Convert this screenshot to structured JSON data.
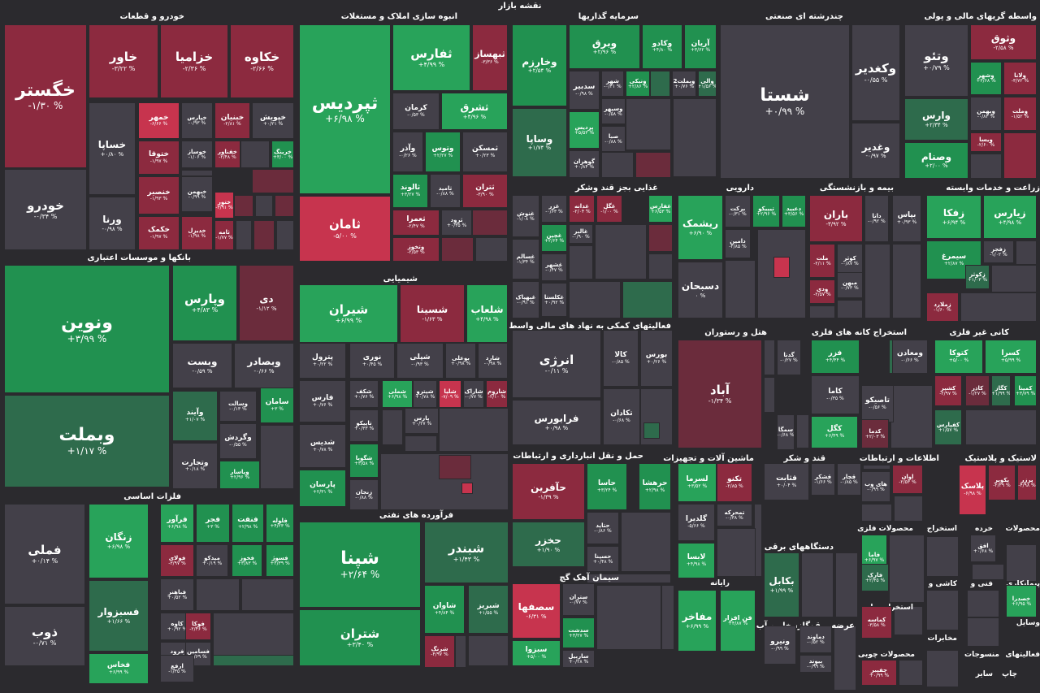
{
  "page_title": "نقشه بازار",
  "colors": {
    "background": "#2b2a2e",
    "strong_green": "#28a35a",
    "green": "#219150",
    "mid_green": "#2e6b4c",
    "neutral": "#434049",
    "mid_red": "#6b2c3c",
    "red": "#8c2a3f",
    "strong_red": "#c7344e"
  },
  "sectors": [
    {
      "name": "خودرو و قطعات"
    },
    {
      "name": "انبوه سازی املاک و مستغلات"
    },
    {
      "name": "سرمایه گذاریها"
    },
    {
      "name": "چندرشته ای صنعتی"
    },
    {
      "name": "واسطه گریهای مالی و پولی"
    },
    {
      "name": "غذایی بجز قند وشکر"
    },
    {
      "name": "دارویی"
    },
    {
      "name": "بیمه و بازنشستگی"
    },
    {
      "name": "زراعت و خدمات وابسته"
    },
    {
      "name": "بانکها و موسسات اعتباری"
    },
    {
      "name": "شیمیایی"
    },
    {
      "name": "فعالیتهای کمکی به نهاد های مالی واسط"
    },
    {
      "name": "هتل و رستوران"
    },
    {
      "name": "استخراج کانه های فلزی"
    },
    {
      "name": "کانی غیر فلزی"
    },
    {
      "name": "فلزات اساسی"
    },
    {
      "name": "فرآورده های نفتی"
    },
    {
      "name": "حمل و نقل انبارداری و ارتباطات"
    },
    {
      "name": "ماشین آلات و تجهیزات"
    },
    {
      "name": "قند و شکر"
    },
    {
      "name": "اطلاعات و ارتباطات"
    },
    {
      "name": "لاستیک و پلاستیک"
    },
    {
      "name": "دستگاههای برقی"
    },
    {
      "name": "سیمان آهک گچ"
    },
    {
      "name": "رایانه"
    },
    {
      "name": "محصولات فلزی"
    },
    {
      "name": "استخراج"
    },
    {
      "name": "خرده"
    },
    {
      "name": "محصولات"
    },
    {
      "name": "کاشی و"
    },
    {
      "name": "فنی و"
    },
    {
      "name": "پیمانکاری"
    },
    {
      "name": "استخراج سایر"
    },
    {
      "name": "عرضه برق،گاز،بخار و آب گرم"
    },
    {
      "name": "وسایل"
    },
    {
      "name": "محصولات چوبی"
    },
    {
      "name": "مخابرات"
    },
    {
      "name": "منسوجات"
    },
    {
      "name": "فعالیتهای"
    },
    {
      "name": "چاپ"
    },
    {
      "name": "سایر"
    }
  ],
  "tiles": [
    {
      "sym": "خگستر",
      "chg": "-۱/۳۰ %",
      "c": "red"
    },
    {
      "sym": "خودرو",
      "chg": "-۰/۳۴ %",
      "c": "neutral"
    },
    {
      "sym": "خاور",
      "chg": "-۳/۲۲ %",
      "c": "red"
    },
    {
      "sym": "خزامیا",
      "chg": "-۲/۳۶ %",
      "c": "red"
    },
    {
      "sym": "خکاوه",
      "chg": "-۲/۶۶ %",
      "c": "red"
    },
    {
      "sym": "خساپا",
      "chg": "+۰/۸۰ %",
      "c": "neutral"
    },
    {
      "sym": "ورنا",
      "chg": "-۰/۹۸ %",
      "c": "neutral"
    },
    {
      "sym": "خمهر",
      "chg": "-۶/۶۶ %",
      "c": "strong_red"
    },
    {
      "sym": "خپارس",
      "chg": "-۰/۹۳ %",
      "c": "neutral"
    },
    {
      "sym": "خبنیان",
      "chg": "-۲/۸۱ %",
      "c": "red"
    },
    {
      "sym": "خپویش",
      "chg": "+۰/۲۱ %",
      "c": "neutral"
    },
    {
      "sym": "ختوقا",
      "chg": "-۱/۹۷ %",
      "c": "red"
    },
    {
      "sym": "خوساز",
      "chg": "-۱/۰۶ %",
      "c": "neutral"
    },
    {
      "sym": "خفناور",
      "chg": "-۲/۴۸ %",
      "c": "red"
    },
    {
      "sym": "خرینگ",
      "chg": "+۳/۰۰ %",
      "c": "green"
    },
    {
      "sym": "خنصیر",
      "chg": "-۱/۹۳ %",
      "c": "red"
    },
    {
      "sym": "خبهمن",
      "chg": "-۰/۹۹ %",
      "c": "neutral"
    },
    {
      "sym": "ختور",
      "chg": "-۳/۹۱ %",
      "c": "strong_red"
    },
    {
      "sym": "خکمک",
      "chg": "-۱/۹۷ %",
      "c": "red"
    },
    {
      "sym": "خدیزل",
      "chg": "-۱/۹۸ %",
      "c": "red"
    },
    {
      "sym": "ثامه",
      "chg": "-۱/۷۷ %",
      "c": "red"
    },
    {
      "sym": "ثپردیس",
      "chg": "+۶/۹۸ %",
      "c": "strong_green"
    },
    {
      "sym": "ثامان",
      "chg": "-۵/۰۰ %",
      "c": "strong_red"
    },
    {
      "sym": "ثفارس",
      "chg": "+۴/۹۹ %",
      "c": "strong_green"
    },
    {
      "sym": "ثبهساز",
      "chg": "-۳/۳۶ %",
      "c": "red"
    },
    {
      "sym": "کرمان",
      "chg": "-۰/۵۳ %",
      "c": "neutral"
    },
    {
      "sym": "ثشرق",
      "chg": "+۴/۹۶ %",
      "c": "strong_green"
    },
    {
      "sym": "وآذر",
      "chg": "-۰/۲۶ %",
      "c": "neutral"
    },
    {
      "sym": "وتوس",
      "chg": "+۲/۲۷ %",
      "c": "green"
    },
    {
      "sym": "ثمسکن",
      "chg": "+۰/۲۳ %",
      "c": "neutral"
    },
    {
      "sym": "ثالوند",
      "chg": "+۳/۲۷ %",
      "c": "green"
    },
    {
      "sym": "ثامید",
      "chg": "-۰/۸۸ %",
      "c": "neutral"
    },
    {
      "sym": "ثتران",
      "chg": "-۳/۹۰ %",
      "c": "red"
    },
    {
      "sym": "ثعمرا",
      "chg": "-۲/۴۷ %",
      "c": "red"
    },
    {
      "sym": "ثرود",
      "chg": "+۰/۳۵ %",
      "c": "neutral"
    },
    {
      "sym": "وتخوز",
      "chg": "-۲/۵۳ %",
      "c": "red"
    },
    {
      "sym": "وخارزم",
      "chg": "+۲/۵۴ %",
      "c": "green"
    },
    {
      "sym": "وبرق",
      "chg": "+۲/۹۶ %",
      "c": "green"
    },
    {
      "sym": "وکادو",
      "chg": "+۴/۸۰ %",
      "c": "green"
    },
    {
      "sym": "آریان",
      "chg": "+۳/۶۲ %",
      "c": "green"
    },
    {
      "sym": "سدبیر",
      "chg": "-۰/۹۸ %",
      "c": "neutral"
    },
    {
      "sym": "شهر",
      "chg": "-۰/۴۱ %",
      "c": "neutral"
    },
    {
      "sym": "ونیکی",
      "chg": "+۲/۸۶ %",
      "c": "green"
    },
    {
      "sym": "وبملت2",
      "chg": "+۰/۷۶ %",
      "c": "neutral"
    },
    {
      "sym": "والی",
      "chg": "+۱/۵۶ %",
      "c": "mid_green"
    },
    {
      "sym": "وسپهر",
      "chg": "-۰/۵۸ %",
      "c": "neutral"
    },
    {
      "sym": "وساپا",
      "chg": "+۱/۷۴ %",
      "c": "mid_green"
    },
    {
      "sym": "پردیس",
      "chg": "+۵/۵۳ %",
      "c": "strong_green"
    },
    {
      "sym": "صبا",
      "chg": "-۰/۸۸ %",
      "c": "neutral"
    },
    {
      "sym": "گوهران",
      "chg": "+۰/۸۴ %",
      "c": "neutral"
    },
    {
      "sym": "شستا",
      "chg": "+۰/۹۹ %",
      "c": "neutral"
    },
    {
      "sym": "وکغدیر",
      "chg": "-۰/۵۵ %",
      "c": "neutral"
    },
    {
      "sym": "وغدیر",
      "chg": "-۰/۹۷ %",
      "c": "neutral"
    },
    {
      "sym": "وثوق",
      "chg": "-۲/۵۸ %",
      "c": "red"
    },
    {
      "sym": "وتئو",
      "chg": "+۰/۷۹ %",
      "c": "neutral"
    },
    {
      "sym": "وشهر",
      "chg": "+۳/۶۸ %",
      "c": "green"
    },
    {
      "sym": "ولانا",
      "chg": "-۳/۷۲ %",
      "c": "red"
    },
    {
      "sym": "وارس",
      "chg": "+۲/۳۴ %",
      "c": "mid_green"
    },
    {
      "sym": "وبهمن",
      "chg": "-۰/۸۳ %",
      "c": "neutral"
    },
    {
      "sym": "وملت",
      "chg": "-۱/۵۲ %",
      "c": "red"
    },
    {
      "sym": "وصنام",
      "chg": "+۲/۰۰ %",
      "c": "green"
    },
    {
      "sym": "ویسا",
      "chg": "-۲/۶۰ %",
      "c": "red"
    },
    {
      "sym": "غنوش",
      "chg": "-۱/۰۸ %",
      "c": "neutral"
    },
    {
      "sym": "غزر",
      "chg": "-۰/۶۳ %",
      "c": "neutral"
    },
    {
      "sym": "غدانه",
      "chg": "-۲/۰۴ %",
      "c": "red"
    },
    {
      "sym": "غگل",
      "chg": "-۱/۰۰ %",
      "c": "red"
    },
    {
      "sym": "غفارس",
      "chg": "+۶/۵۳ %",
      "c": "strong_green"
    },
    {
      "sym": "غالبر",
      "chg": "-۰/۹۰ %",
      "c": "neutral"
    },
    {
      "sym": "غچین",
      "chg": "+۲/۶۴ %",
      "c": "green"
    },
    {
      "sym": "غسالم",
      "chg": "-۱/۳۴ %",
      "c": "neutral"
    },
    {
      "sym": "غشهر",
      "chg": "-۰/۴۷ %",
      "c": "neutral"
    },
    {
      "sym": "غبهپاک",
      "chg": "-۰/۹۱ %",
      "c": "neutral"
    },
    {
      "sym": "غکلستا",
      "chg": "+۰/۹۲ %",
      "c": "neutral"
    },
    {
      "sym": "تیپیکو",
      "chg": "+۲/۹۶ %",
      "c": "green"
    },
    {
      "sym": "دعبید",
      "chg": "+۳/۵۶ %",
      "c": "green"
    },
    {
      "sym": "برکت",
      "chg": "-۰/۳۱ %",
      "c": "neutral"
    },
    {
      "sym": "ریشمک",
      "chg": "+۶/۹۰ %",
      "c": "strong_green"
    },
    {
      "sym": "دامین",
      "chg": "-۲/۸۵ %",
      "c": "neutral"
    },
    {
      "sym": "دسبحان",
      "chg": "۰ %",
      "c": "neutral"
    },
    {
      "sym": "باران",
      "chg": "-۳/۹۲ %",
      "c": "red"
    },
    {
      "sym": "دانا",
      "chg": "-۰/۹۲ %",
      "c": "neutral"
    },
    {
      "sym": "بپاس",
      "chg": "+۰/۹۳ %",
      "c": "neutral"
    },
    {
      "sym": "ملت",
      "chg": "-۲/۱۱ %",
      "c": "red"
    },
    {
      "sym": "کوثر",
      "chg": "-۰/۸۷ %",
      "c": "neutral"
    },
    {
      "sym": "میهن",
      "chg": "-۰/۷۳ %",
      "c": "neutral"
    },
    {
      "sym": "ودی",
      "chg": "-۲/۵۷ %",
      "c": "red"
    },
    {
      "sym": "زفکا",
      "chg": "+۶/۹۴ %",
      "c": "strong_green"
    },
    {
      "sym": "زیارس",
      "chg": "+۴/۹۸ %",
      "c": "strong_green"
    },
    {
      "sym": "زفجر",
      "chg": "-۱/۰۲ %",
      "c": "neutral"
    },
    {
      "sym": "سیمرغ",
      "chg": "+۲/۸۷ %",
      "c": "green"
    },
    {
      "sym": "زکوثر",
      "chg": "+۱/۰۳ %",
      "c": "mid_green"
    },
    {
      "sym": "زملارد",
      "chg": "-۱/۶۰ %",
      "c": "red"
    },
    {
      "sym": "ونوین",
      "chg": "+۳/۹۹ %",
      "c": "green"
    },
    {
      "sym": "وبملت",
      "chg": "+۱/۱۷ %",
      "c": "mid_green"
    },
    {
      "sym": "وپارس",
      "chg": "+۴/۸۳ %",
      "c": "green"
    },
    {
      "sym": "دی",
      "chg": "-۱/۱۲ %",
      "c": "mid_red"
    },
    {
      "sym": "وبست",
      "chg": "-۰/۵۹ %",
      "c": "neutral"
    },
    {
      "sym": "وبصادر",
      "chg": "-۰/۶۶ %",
      "c": "neutral"
    },
    {
      "sym": "وآیند",
      "chg": "+۱/۰۷ %",
      "c": "mid_green"
    },
    {
      "sym": "وسالت",
      "chg": "-۰/۱۳ %",
      "c": "neutral"
    },
    {
      "sym": "سامان",
      "chg": "+۳ %",
      "c": "green"
    },
    {
      "sym": "وگردش",
      "chg": "-۰/۵۵ %",
      "c": "neutral"
    },
    {
      "sym": "وتجارت",
      "chg": "+۰/۱۸ %",
      "c": "neutral"
    },
    {
      "sym": "وپاسار",
      "chg": "+۲/۹۶ %",
      "c": "green"
    },
    {
      "sym": "شیران",
      "chg": "+۶/۹۹ %",
      "c": "strong_green"
    },
    {
      "sym": "شسینا",
      "chg": "-۱/۶۳ %",
      "c": "red"
    },
    {
      "sym": "شلعاب",
      "chg": "+۴/۹۸ %",
      "c": "strong_green"
    },
    {
      "sym": "پترول",
      "chg": "+۰/۲۲ %",
      "c": "neutral"
    },
    {
      "sym": "نوری",
      "chg": "+۰/۴۵ %",
      "c": "neutral"
    },
    {
      "sym": "شپلی",
      "chg": "-۰/۹۳ %",
      "c": "neutral"
    },
    {
      "sym": "بوعلی",
      "chg": "+۰/۹۸ %",
      "c": "neutral"
    },
    {
      "sym": "شارد",
      "chg": "-۰/۹۸ %",
      "c": "neutral"
    },
    {
      "sym": "فارس",
      "chg": "+۰/۷۶ %",
      "c": "neutral"
    },
    {
      "sym": "شکف",
      "chg": "+۰/۷۶ %",
      "c": "neutral"
    },
    {
      "sym": "شملی",
      "chg": "+۶/۹۸ %",
      "c": "strong_green"
    },
    {
      "sym": "شپترو",
      "chg": "+۰/۷۸ %",
      "c": "neutral"
    },
    {
      "sym": "شلیا",
      "chg": "-۷/۰۹ %",
      "c": "strong_red"
    },
    {
      "sym": "شاراک",
      "chg": "-۰/۷۷ %",
      "c": "neutral"
    },
    {
      "sym": "شاروم",
      "chg": "-۲/۱۰ %",
      "c": "red"
    },
    {
      "sym": "شدیس",
      "chg": "+۰/۷۸ %",
      "c": "neutral"
    },
    {
      "sym": "تاپیکو",
      "chg": "+۰/۳۳ %",
      "c": "neutral"
    },
    {
      "sym": "شگویا",
      "chg": "+۳/۵۸ %",
      "c": "green"
    },
    {
      "sym": "پارسان",
      "chg": "+۲/۳۱ %",
      "c": "green"
    },
    {
      "sym": "زنجان",
      "chg": "-۰/۸۸ %",
      "c": "neutral"
    },
    {
      "sym": "پارس",
      "chg": "+۰/۲۷ %",
      "c": "neutral"
    },
    {
      "sym": "انرژی",
      "chg": "-۰/۱۱ %",
      "c": "neutral"
    },
    {
      "sym": "کالا",
      "chg": "-۰/۸۵ %",
      "c": "neutral"
    },
    {
      "sym": "بورس",
      "chg": "+۰/۲۶ %",
      "c": "neutral"
    },
    {
      "sym": "فرابورس",
      "chg": "+۰/۹۸ %",
      "c": "neutral"
    },
    {
      "sym": "تکادان",
      "chg": "-۰/۶۸ %",
      "c": "neutral"
    },
    {
      "sym": "آباد",
      "chg": "-۱/۳۴ %",
      "c": "mid_red"
    },
    {
      "sym": "گدنا",
      "chg": "-۰/۲۷ %",
      "c": "neutral"
    },
    {
      "sym": "سمگا",
      "chg": "-۰/۶۸ %",
      "c": "neutral"
    },
    {
      "sym": "فزر",
      "chg": "+۴/۴۴ %",
      "c": "green"
    },
    {
      "sym": "کچاد",
      "chg": "+۳/۵۳ %",
      "c": "mid_green"
    },
    {
      "sym": "ومعادن",
      "chg": "-۰/۶۶ %",
      "c": "neutral"
    },
    {
      "sym": "کاما",
      "chg": "-۰/۳۵ %",
      "c": "neutral"
    },
    {
      "sym": "تاصیکو",
      "chg": "-۰/۵۶ %",
      "c": "neutral"
    },
    {
      "sym": "کگل",
      "chg": "+۶/۴۹ %",
      "c": "strong_green"
    },
    {
      "sym": "کدما",
      "chg": "+۲/۰۳ %",
      "c": "mid_red"
    },
    {
      "sym": "کتوکا",
      "chg": "+۵/۰۰ %",
      "c": "strong_green"
    },
    {
      "sym": "کسرا",
      "chg": "+۵/۹۹ %",
      "c": "strong_green"
    },
    {
      "sym": "کشیر",
      "chg": "-۲/۹۷ %",
      "c": "red"
    },
    {
      "sym": "کاذر",
      "chg": "-۱/۲۷ %",
      "c": "mid_red"
    },
    {
      "sym": "کگاز",
      "chg": "+۱/۹۹ %",
      "c": "mid_green"
    },
    {
      "sym": "کمینا",
      "chg": "+۳/۷۹ %",
      "c": "green"
    },
    {
      "sym": "کفپارس",
      "chg": "+۱/۵۷ %",
      "c": "mid_green"
    },
    {
      "sym": "فملی",
      "chg": "+۰/۱۴ %",
      "c": "neutral"
    },
    {
      "sym": "ذوب",
      "chg": "-۰/۷۱ %",
      "c": "neutral"
    },
    {
      "sym": "زنگان",
      "chg": "+۶/۹۸ %",
      "c": "strong_green"
    },
    {
      "sym": "فرآور",
      "chg": "+۶/۹۸ %",
      "c": "strong_green"
    },
    {
      "sym": "فجر",
      "chg": "+۳ %",
      "c": "green"
    },
    {
      "sym": "فنفت",
      "chg": "+۲/۹۸ %",
      "c": "green"
    },
    {
      "sym": "فلوله",
      "chg": "+۴/۲۳ %",
      "c": "green"
    },
    {
      "sym": "فولای",
      "chg": "-۳/۹۷ %",
      "c": "red"
    },
    {
      "sym": "میدکو",
      "chg": "+۰/۱۹ %",
      "c": "neutral"
    },
    {
      "sym": "فخوز",
      "chg": "+۳/۸۳ %",
      "c": "green"
    },
    {
      "sym": "فسوژ",
      "chg": "+۲/۳۹ %",
      "c": "green"
    },
    {
      "sym": "فسبزوار",
      "chg": "+۱/۶۶ %",
      "c": "mid_green"
    },
    {
      "sym": "فباهنر",
      "chg": "+۰/۵۲ %",
      "c": "neutral"
    },
    {
      "sym": "کاوه",
      "chg": "+۰/۹۲ %",
      "c": "neutral"
    },
    {
      "sym": "فوکا",
      "chg": "-۲/۴۶ %",
      "c": "red"
    },
    {
      "sym": "فرود",
      "chg": "+۰/۳۸ %",
      "c": "neutral"
    },
    {
      "sym": "فسامین",
      "chg": "-۰/۶۹ %",
      "c": "neutral"
    },
    {
      "sym": "فخاس",
      "chg": "+۶/۹۹ %",
      "c": "strong_green"
    },
    {
      "sym": "ارفع",
      "chg": "-۱/۳۵ %",
      "c": "neutral"
    },
    {
      "sym": "شپنا",
      "chg": "+۲/۶۴ %",
      "c": "green"
    },
    {
      "sym": "شبندر",
      "chg": "+۱/۴۳ %",
      "c": "mid_green"
    },
    {
      "sym": "شتران",
      "chg": "+۳/۴۰ %",
      "c": "green"
    },
    {
      "sym": "شاوان",
      "chg": "+۴/۸۴ %",
      "c": "green"
    },
    {
      "sym": "شبریز",
      "chg": "+۱/۵۵ %",
      "c": "mid_green"
    },
    {
      "sym": "شرنگ",
      "chg": "-۴/۹۷ %",
      "c": "red"
    },
    {
      "sym": "حآفرین",
      "chg": "-۱/۳۹ %",
      "c": "red"
    },
    {
      "sym": "حاسا",
      "chg": "+۳/۲۴ %",
      "c": "green"
    },
    {
      "sym": "حرهشا",
      "chg": "+۲/۹۸ %",
      "c": "green"
    },
    {
      "sym": "حخزر",
      "chg": "+۱/۹۰ %",
      "c": "mid_green"
    },
    {
      "sym": "حتاید",
      "chg": "-۰/۸۶ %",
      "c": "neutral"
    },
    {
      "sym": "حسینا",
      "chg": "+۰/۴۸ %",
      "c": "neutral"
    },
    {
      "sym": "لسرما",
      "chg": "+۳/۵۲ %",
      "c": "strong_green"
    },
    {
      "sym": "تکنو",
      "chg": "-۲/۸۵ %",
      "c": "red"
    },
    {
      "sym": "تمحرکه",
      "chg": "-۰/۳۸ %",
      "c": "neutral"
    },
    {
      "sym": "گلدیرا",
      "chg": "-۵/۶۶ %",
      "c": "neutral"
    },
    {
      "sym": "لابسا",
      "chg": "+۴/۹۸ %",
      "c": "strong_green"
    },
    {
      "sym": "قثابت",
      "chg": "+۰/۰۴ %",
      "c": "neutral"
    },
    {
      "sym": "قشکر",
      "chg": "-۱/۶۶ %",
      "c": "neutral"
    },
    {
      "sym": "قچار",
      "chg": "-۰/۸۵ %",
      "c": "neutral"
    },
    {
      "sym": "اوان",
      "chg": "-۲/۵۳ %",
      "c": "red"
    },
    {
      "sym": "های وب",
      "chg": "-۰/۹۹ %",
      "c": "neutral"
    },
    {
      "sym": "پکویر",
      "chg": "-۲/۲۹ %",
      "c": "red"
    },
    {
      "sym": "پرزر",
      "chg": "-۴/۹۸ %",
      "c": "red"
    },
    {
      "sym": "پلاسک",
      "chg": "-۶/۹۸ %",
      "c": "strong_red"
    },
    {
      "sym": "بکابل",
      "chg": "+۱/۹۹ %",
      "c": "mid_green"
    },
    {
      "sym": "سصفها",
      "chg": "-۶/۳۱ %",
      "c": "strong_red"
    },
    {
      "sym": "ستران",
      "chg": "-۰/۷۷ %",
      "c": "neutral"
    },
    {
      "sym": "سدشت",
      "chg": "+۳/۲۷ %",
      "c": "green"
    },
    {
      "sym": "سبزوا",
      "chg": "+۵/۰۰ %",
      "c": "strong_green"
    },
    {
      "sym": "ساربیل",
      "chg": "+۰/۲۸ %",
      "c": "neutral"
    },
    {
      "sym": "مفاخر",
      "chg": "+۶/۹۹ %",
      "c": "strong_green"
    },
    {
      "sym": "فن افزار",
      "chg": "+۴/۸۷ %",
      "c": "strong_green"
    },
    {
      "sym": "فاما",
      "chg": "+۶/۹۷ %",
      "c": "strong_green"
    },
    {
      "sym": "فارک",
      "chg": "+۲/۴۵ %",
      "c": "mid_green"
    },
    {
      "sym": "افق",
      "chg": "+۰/۶۸ %",
      "c": "neutral"
    },
    {
      "sym": "خصدرا",
      "chg": "+۶/۹۵ %",
      "c": "strong_green"
    },
    {
      "sym": "کماسه",
      "chg": "-۳/۵۸ %",
      "c": "red"
    },
    {
      "sym": "ونیرو",
      "chg": "-۰/۹۹ %",
      "c": "neutral"
    },
    {
      "sym": "دماوند",
      "chg": "-۰/۵۲ %",
      "c": "neutral"
    },
    {
      "sym": "بیوند",
      "chg": "-۰/۹۹ %",
      "c": "neutral"
    },
    {
      "sym": "چفیبر",
      "chg": "+۰/۹۹ %",
      "c": "red"
    }
  ]
}
